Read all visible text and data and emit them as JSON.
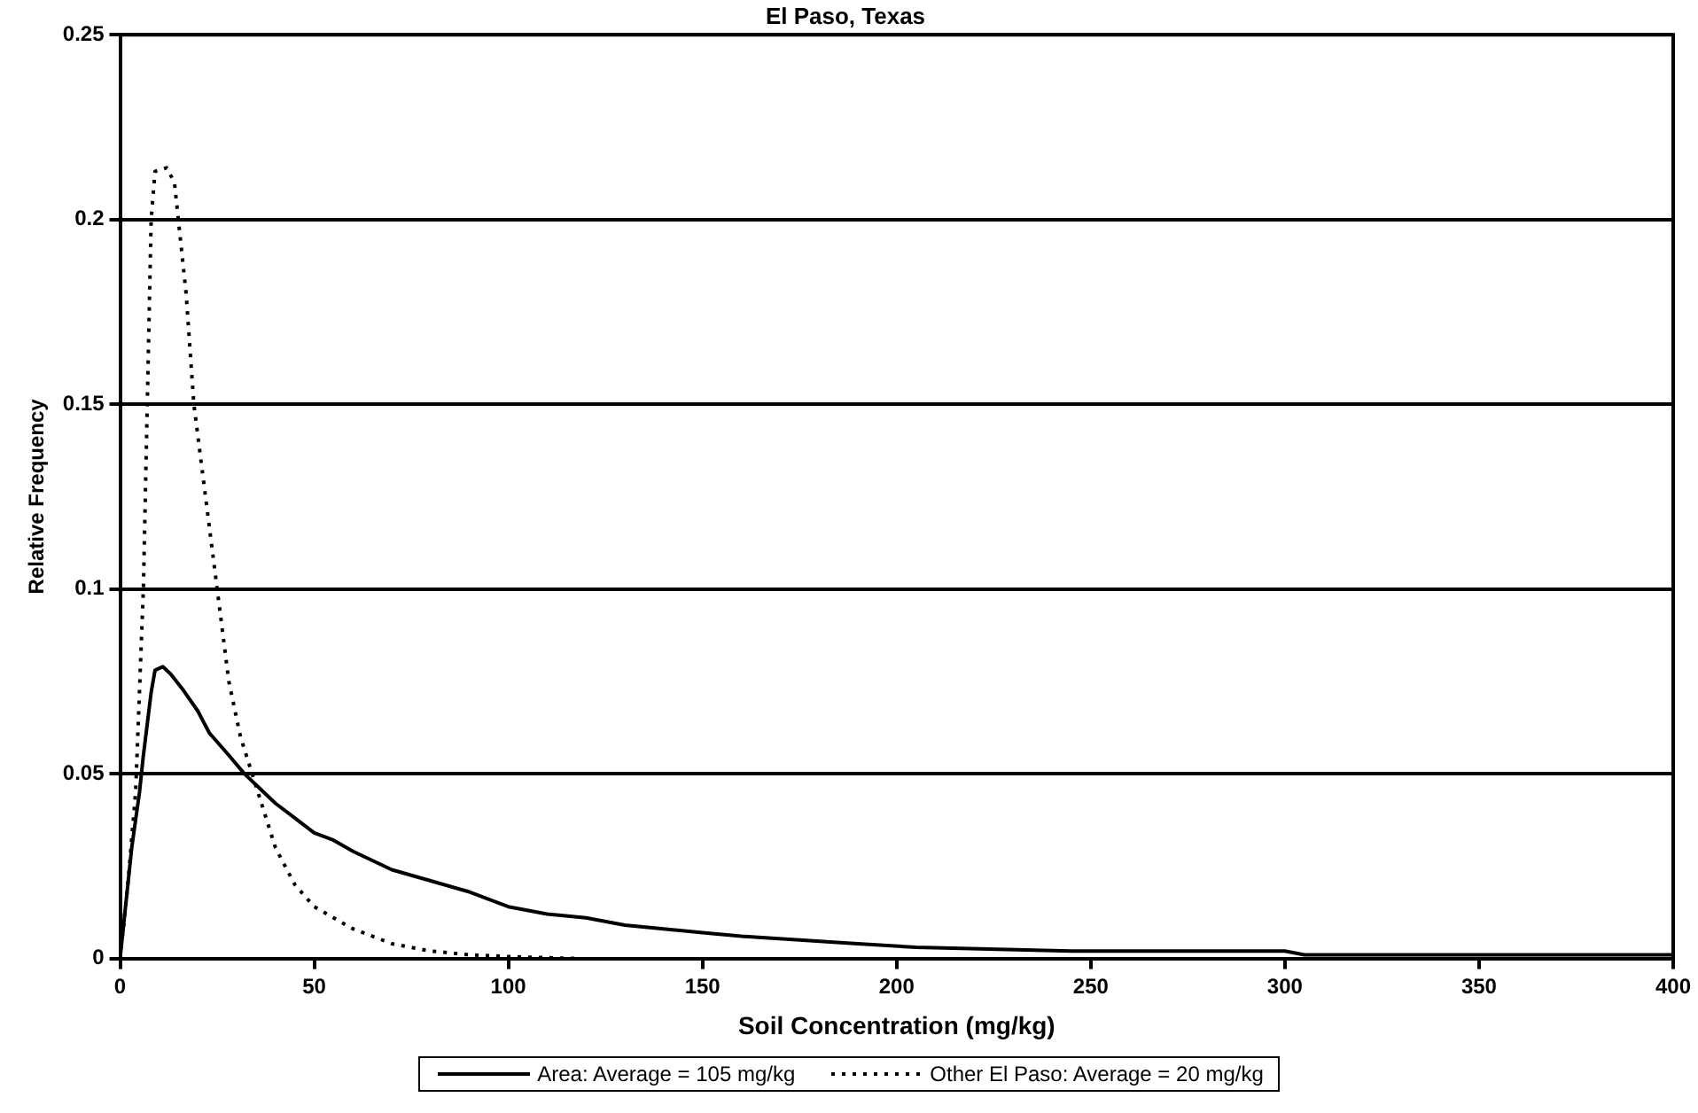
{
  "chart_data": {
    "type": "line",
    "title": "El Paso, Texas",
    "xlabel": "Soil Concentration (mg/kg)",
    "ylabel": "Relative Frequency",
    "xlim": [
      0,
      400
    ],
    "xticks": [
      0,
      50,
      100,
      150,
      200,
      250,
      300,
      350,
      400
    ],
    "ylim": [
      0,
      0.25
    ],
    "yticks": [
      0,
      0.05,
      0.1,
      0.15,
      0.2,
      0.25
    ],
    "grid": "y",
    "legend": "bottom",
    "marker": "none",
    "series": [
      {
        "name": "Area: Average = 105 mg/kg",
        "color": "#000000",
        "line_style": "solid",
        "x": [
          0,
          1,
          2,
          3,
          5,
          6,
          8,
          9,
          11,
          13,
          16,
          20,
          23,
          28,
          32,
          37,
          40,
          45,
          50,
          55,
          60,
          70,
          80,
          90,
          100,
          110,
          120,
          130,
          140,
          150,
          160,
          175,
          190,
          205,
          245,
          300,
          305,
          400
        ],
        "values": [
          0,
          0.01,
          0.02,
          0.03,
          0.045,
          0.055,
          0.072,
          0.078,
          0.079,
          0.077,
          0.073,
          0.067,
          0.061,
          0.055,
          0.05,
          0.045,
          0.042,
          0.038,
          0.034,
          0.032,
          0.029,
          0.024,
          0.021,
          0.018,
          0.014,
          0.012,
          0.011,
          0.009,
          0.008,
          0.007,
          0.006,
          0.005,
          0.004,
          0.003,
          0.002,
          0.002,
          0.001,
          0.001
        ]
      },
      {
        "name": "Other El Paso: Average = 20 mg/kg",
        "color": "#000000",
        "line_style": "dotted",
        "x": [
          0,
          2,
          4,
          6,
          7,
          8,
          9,
          12,
          14,
          15,
          17,
          19,
          22,
          25,
          28,
          31,
          34,
          37,
          40,
          45,
          50,
          60,
          70,
          80,
          90,
          100,
          117
        ],
        "values": [
          0,
          0.02,
          0.045,
          0.1,
          0.15,
          0.2,
          0.213,
          0.214,
          0.21,
          0.2,
          0.18,
          0.15,
          0.125,
          0.1,
          0.075,
          0.06,
          0.05,
          0.04,
          0.03,
          0.02,
          0.014,
          0.008,
          0.004,
          0.002,
          0.001,
          0.0005,
          0
        ]
      }
    ]
  }
}
